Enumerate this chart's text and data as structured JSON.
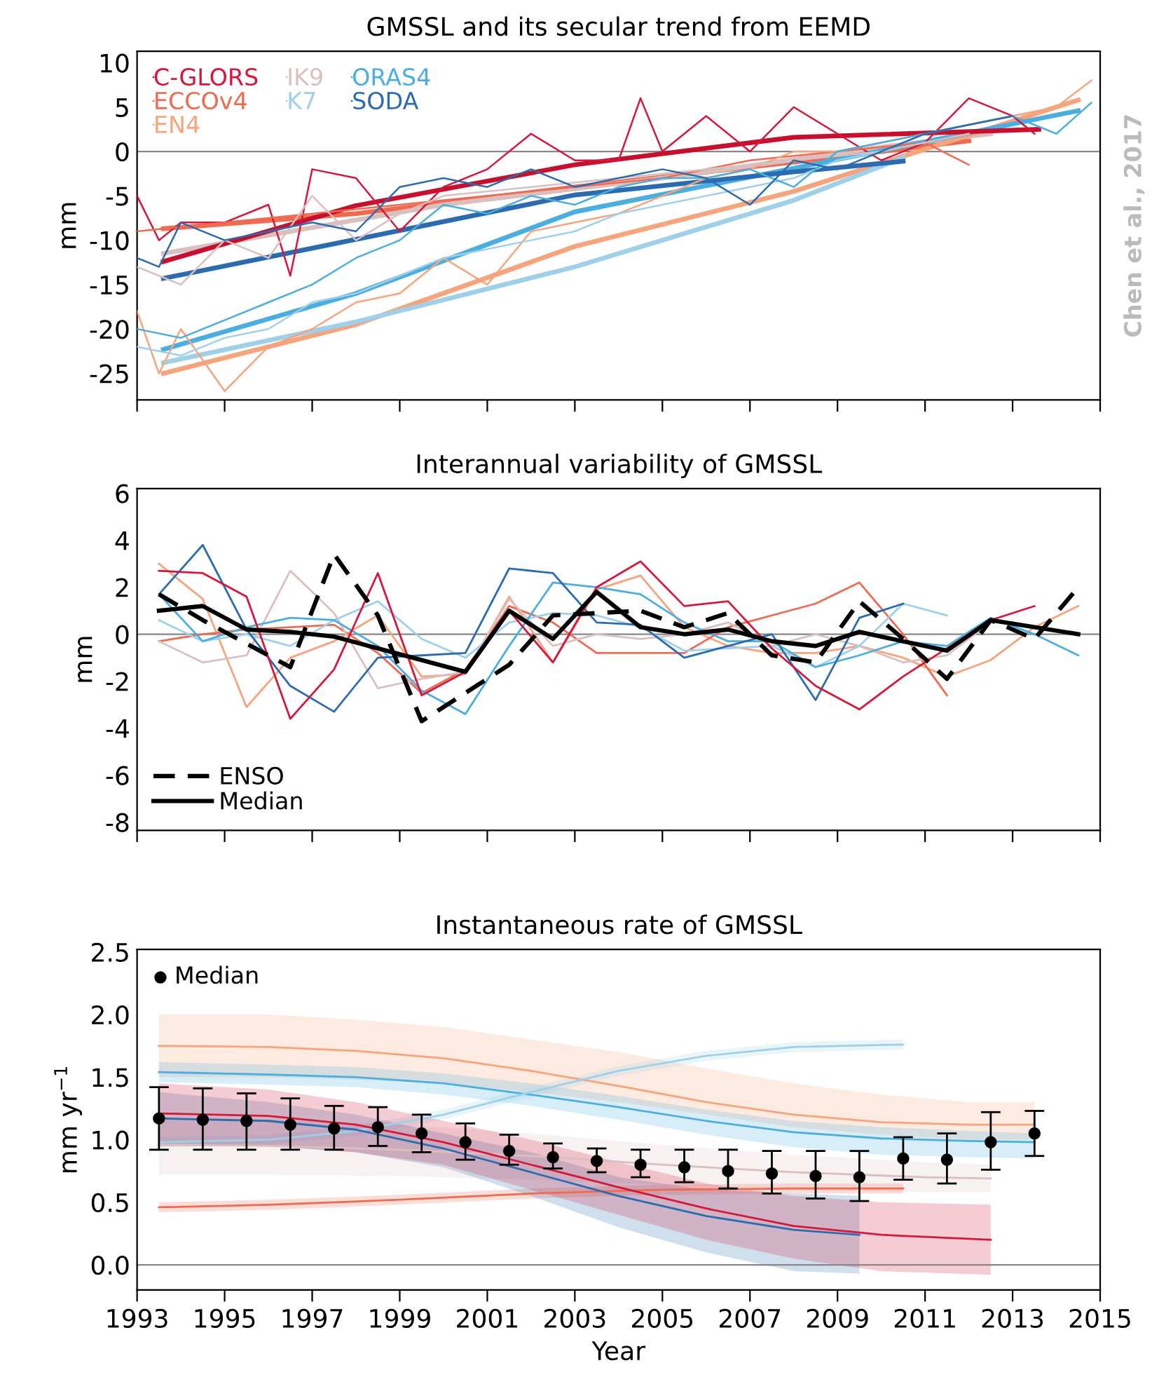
{
  "chart_data": [
    {
      "type": "line",
      "title": "GMSSL and its secular trend from EEMD",
      "ylabel": "mm",
      "xlim": [
        1993,
        2015
      ],
      "xticks": [
        1993,
        1995,
        1997,
        1999,
        2001,
        2003,
        2005,
        2007,
        2009,
        2011,
        2013,
        2015
      ],
      "ylim": [
        -28,
        11.3
      ],
      "yticks": [
        -25,
        -20,
        -15,
        -10,
        -5,
        0,
        5,
        10
      ],
      "tick_labels": "y",
      "legend": "top left",
      "grid": false,
      "marker": "none",
      "annotations": [
        "Chen et al., 2017"
      ],
      "ref_lines": [
        {
          "axis": "y",
          "value": 0,
          "color": "#888888"
        }
      ],
      "series": [
        {
          "name": "C-GLORS",
          "color": "#d6163a",
          "x": [
            1993,
            1993.5,
            1994,
            1995,
            1996,
            1996.5,
            1997,
            1998,
            1999,
            2000,
            2001,
            2002,
            2003,
            2004,
            2004.5,
            2005,
            2006,
            2007,
            2008,
            2009,
            2010,
            2011,
            2012,
            2013,
            2013.5
          ],
          "values": [
            -5,
            -10,
            -8,
            -8,
            -6,
            -14,
            -2,
            -3,
            -9,
            -4,
            -2,
            2,
            -1,
            -1,
            6,
            0,
            4,
            0,
            5,
            2,
            -1,
            1,
            6,
            4,
            2
          ]
        },
        {
          "name": "ECCOv4",
          "color": "#f06a50",
          "x": [
            1993,
            1995,
            1997,
            1999,
            2001,
            2003,
            2005,
            2007,
            2009,
            2011,
            2012
          ],
          "values": [
            -9,
            -8,
            -7,
            -6,
            -5,
            -4,
            -3,
            -1,
            0,
            1,
            -1.5
          ]
        },
        {
          "name": "EN4",
          "color": "#f7a37c",
          "x": [
            1993,
            1993.5,
            1994,
            1995,
            1996,
            1997,
            1998,
            1999,
            2000,
            2001,
            2002,
            2003,
            2004,
            2005,
            2006,
            2007,
            2008,
            2009,
            2010,
            2011,
            2012,
            2013,
            2014,
            2014.8
          ],
          "values": [
            -18,
            -25,
            -20,
            -27,
            -22,
            -20,
            -17,
            -16,
            -12,
            -15,
            -9,
            -8,
            -7,
            -5,
            -3,
            -2,
            0,
            0,
            1,
            2,
            3,
            4,
            5,
            8
          ]
        },
        {
          "name": "IK9",
          "color": "#d9bfbf",
          "x": [
            1993,
            1994,
            1995,
            1996,
            1997,
            1998,
            1999,
            2000,
            2002,
            2004,
            2006,
            2008,
            2010,
            2012
          ],
          "values": [
            -13,
            -15,
            -10,
            -12,
            -5,
            -10,
            -7,
            -5,
            -4,
            -3,
            -2,
            -1,
            0,
            2
          ]
        },
        {
          "name": "K7",
          "color": "#9fd0ea",
          "x": [
            1993,
            1994,
            1995,
            1996,
            1997,
            1998,
            1999,
            2000,
            2001,
            2002,
            2003,
            2004,
            2005,
            2006,
            2007,
            2008,
            2009,
            2010
          ],
          "values": [
            -22,
            -23,
            -21,
            -20,
            -17,
            -16,
            -14,
            -12,
            -11,
            -10,
            -9,
            -7,
            -6,
            -5,
            -4,
            -3,
            -1,
            0
          ]
        },
        {
          "name": "ORAS4",
          "color": "#4aaee0",
          "x": [
            1993,
            1994,
            1995,
            1996,
            1997,
            1998,
            1999,
            2000,
            2001,
            2002,
            2003,
            2004,
            2005,
            2006,
            2007,
            2008,
            2009,
            2010,
            2011,
            2012,
            2013,
            2014,
            2014.8
          ],
          "values": [
            -20,
            -21,
            -19,
            -17,
            -15,
            -12,
            -10,
            -6,
            -7,
            -5,
            -6,
            -4,
            -3,
            -3,
            -2,
            -4,
            0,
            1,
            2,
            3,
            4,
            2,
            5.5
          ]
        },
        {
          "name": "SODA",
          "color": "#2b6cb0",
          "x": [
            1993,
            1993.5,
            1994,
            1995,
            1996,
            1997,
            1998,
            1999,
            2000,
            2001,
            2002,
            2003,
            2004,
            2005,
            2006,
            2007,
            2008,
            2009,
            2010,
            2011,
            2012,
            2013
          ],
          "values": [
            -12,
            -13,
            -8,
            -10,
            -9,
            -8,
            -9,
            -4,
            -3,
            -4,
            -2,
            -4,
            -3,
            -2,
            -3,
            -6,
            -1,
            -2,
            0,
            2,
            3,
            4
          ]
        },
        {
          "color": "#f06a50",
          "x": [
            1993.6,
            1998,
            2003,
            2008,
            2012
          ],
          "values": [
            -8.7,
            -7,
            -4,
            -1.2,
            1.2
          ]
        },
        {
          "color": "#d9bfbf",
          "x": [
            1993.6,
            2000,
            2005,
            2010,
            2012.5
          ],
          "values": [
            -11.5,
            -6,
            -3,
            0.5,
            2
          ]
        },
        {
          "color": "#f7a37c",
          "x": [
            1993.6,
            1998,
            2003,
            2008,
            2014.5
          ],
          "values": [
            -25,
            -19.5,
            -10.7,
            -4.5,
            5.8
          ]
        },
        {
          "color": "#9fd0ea",
          "x": [
            1993.6,
            1998,
            2003,
            2008,
            2010.5
          ],
          "values": [
            -23.8,
            -19.2,
            -13,
            -5.5,
            -0.7
          ]
        },
        {
          "color": "#4aaee0",
          "x": [
            1993.6,
            1998,
            2003,
            2008,
            2014.5
          ],
          "values": [
            -22.3,
            -16,
            -6.8,
            -1.9,
            4.6
          ]
        },
        {
          "color": "#2b6cb0",
          "x": [
            1993.6,
            1998,
            2003,
            2008,
            2010.5
          ],
          "values": [
            -14.3,
            -9.9,
            -4.9,
            -2.3,
            -1.1
          ]
        },
        {
          "color": "#c8102e",
          "x": [
            1993.6,
            1998,
            2003,
            2008,
            2013.6
          ],
          "values": [
            -12.4,
            -6.1,
            -1.5,
            1.6,
            2.5
          ]
        }
      ]
    },
    {
      "type": "line",
      "title": "Interannual variability of GMSSL",
      "ylabel": "mm",
      "xlim": [
        1993,
        2015
      ],
      "xticks": [
        1993,
        1995,
        1997,
        1999,
        2001,
        2003,
        2005,
        2007,
        2009,
        2011,
        2013,
        2015
      ],
      "ylim": [
        -8.35,
        6.2
      ],
      "yticks": [
        -8,
        -6,
        -4,
        -2,
        0,
        2,
        4,
        6
      ],
      "tick_labels": "y",
      "legend": "bottom left",
      "grid": false,
      "marker": "none",
      "ref_lines": [
        {
          "axis": "y",
          "value": 0,
          "color": "#888888"
        }
      ],
      "x": [
        1993.5,
        1994.5,
        1995.5,
        1996.5,
        1997.5,
        1998.5,
        1999.5,
        2000.5,
        2001.5,
        2002.5,
        2003.5,
        2004.5,
        2005.5,
        2006.5,
        2007.5,
        2008.5,
        2009.5,
        2010.5,
        2011.5,
        2012.5,
        2013.5,
        2014.5
      ],
      "series": [
        {
          "color": "#f7a37c",
          "values": [
            3.0,
            1.5,
            -3.1,
            -1.0,
            -0.3,
            0.8,
            -1.8,
            -1.7,
            1.6,
            -1.2,
            1.9,
            2.5,
            0.3,
            -0.5,
            -0.8,
            -0.8,
            -0.5,
            -1.0,
            -1.8,
            -1.1,
            0.3,
            1.2
          ]
        },
        {
          "color": "#f06a50",
          "values": [
            -0.3,
            0.0,
            0.2,
            0.3,
            0.4,
            -0.8,
            -2.5,
            -1.5,
            1.2,
            0.5,
            -0.8,
            -0.8,
            -0.8,
            0.3,
            0.8,
            1.3,
            2.2,
            0.0,
            -2.6,
            null,
            null,
            null
          ]
        },
        {
          "color": "#d9bfbf",
          "values": [
            -0.3,
            -1.2,
            -0.9,
            2.7,
            0.9,
            -2.3,
            -1.9,
            -1.6,
            1.5,
            -0.5,
            0.0,
            -0.2,
            0.0,
            0.5,
            -0.5,
            0.0,
            -0.5,
            -1.2,
            -0.9,
            0.5,
            null,
            null
          ]
        },
        {
          "color": "#9fd0ea",
          "values": [
            0.6,
            -0.3,
            0.0,
            -0.5,
            0.6,
            1.4,
            -0.2,
            -1.0,
            0.5,
            0.9,
            0.8,
            0.3,
            -0.7,
            -0.6,
            -0.5,
            -1.4,
            -0.5,
            1.3,
            0.8,
            null,
            null,
            null
          ]
        },
        {
          "color": "#4aaee0",
          "values": [
            1.7,
            -0.3,
            0.3,
            0.7,
            0.6,
            -0.5,
            -2.4,
            -3.4,
            -0.5,
            2.2,
            2.0,
            1.7,
            0.5,
            -0.3,
            -0.3,
            -1.4,
            -0.9,
            -0.3,
            -0.5,
            0.7,
            0.0,
            -0.9
          ]
        },
        {
          "color": "#2b6cb0",
          "values": [
            1.7,
            3.8,
            0.2,
            -2.2,
            -3.3,
            -1.0,
            -0.9,
            -0.8,
            2.8,
            2.6,
            0.5,
            0.4,
            -1.0,
            -0.5,
            0.0,
            -2.8,
            0.7,
            1.3,
            null,
            null,
            null,
            null
          ]
        },
        {
          "color": "#d6163a",
          "values": [
            2.7,
            2.6,
            1.6,
            -3.6,
            -1.5,
            2.6,
            -2.6,
            -1.6,
            1.0,
            -1.2,
            2.0,
            3.1,
            1.2,
            1.4,
            -0.6,
            -2.2,
            -3.2,
            -1.8,
            -0.6,
            0.6,
            1.2,
            null
          ]
        },
        {
          "name": "ENSO",
          "color": "#000000",
          "line_style": "dashed",
          "values": [
            1.7,
            0.6,
            -0.4,
            -1.4,
            3.4,
            0.8,
            -3.7,
            -2.5,
            -1.3,
            0.8,
            0.9,
            1.0,
            0.3,
            0.9,
            -0.9,
            -1.2,
            1.4,
            -0.2,
            -1.9,
            0.6,
            -0.2,
            2.0
          ]
        },
        {
          "name": "Median",
          "color": "#000000",
          "line_style": "solid",
          "values": [
            1.0,
            1.2,
            0.2,
            0.1,
            -0.1,
            -0.6,
            -1.1,
            -1.6,
            1.0,
            -0.2,
            1.8,
            0.3,
            0.0,
            0.2,
            -0.3,
            -0.5,
            0.1,
            -0.3,
            -0.7,
            0.6,
            0.3,
            0.0
          ]
        }
      ]
    },
    {
      "type": "line",
      "title": "Instantaneous rate of GMSSL",
      "xlabel": "Year",
      "ylabel": "mm yr$^{−1}$",
      "xlim": [
        1993,
        2015
      ],
      "xticks": [
        1993,
        1995,
        1997,
        1999,
        2001,
        2003,
        2005,
        2007,
        2009,
        2011,
        2013,
        2015
      ],
      "ylim": [
        -0.2,
        2.52
      ],
      "yticks": [
        {
          "value": 0,
          "label": "0.0"
        },
        {
          "value": 0.5,
          "label": "0.5"
        },
        {
          "value": 1,
          "label": "1.0"
        },
        {
          "value": 1.5,
          "label": "1.5"
        },
        {
          "value": 2,
          "label": "2.0"
        },
        {
          "value": 2.5,
          "label": "2.5"
        }
      ],
      "legend": "top left",
      "grid": false,
      "marker": "none",
      "ref_lines": [
        {
          "axis": "y",
          "value": 0,
          "color": "#888888"
        }
      ],
      "series": [
        {
          "color": "#f7a37c",
          "x": [
            1993.5,
            1996,
            1998,
            2000,
            2002,
            2004,
            2006,
            2008,
            2010,
            2012,
            2013.5
          ],
          "values": [
            1.75,
            1.74,
            1.71,
            1.65,
            1.55,
            1.43,
            1.3,
            1.2,
            1.14,
            1.12,
            1.12
          ],
          "lower": [
            1.5,
            1.5,
            1.48,
            1.45,
            1.38,
            1.3,
            1.2,
            1.1,
            1.04,
            1.0,
            1.0
          ],
          "upper": [
            2.0,
            2.0,
            1.96,
            1.9,
            1.8,
            1.7,
            1.57,
            1.45,
            1.36,
            1.3,
            1.3
          ]
        },
        {
          "color": "#4aaee0",
          "x": [
            1993.5,
            1996,
            1998,
            2000,
            2002,
            2004,
            2006,
            2008,
            2010,
            2012,
            2013.5
          ],
          "values": [
            1.54,
            1.52,
            1.5,
            1.45,
            1.36,
            1.26,
            1.15,
            1.06,
            1.01,
            0.99,
            0.98
          ],
          "lower": [
            1.46,
            1.44,
            1.42,
            1.36,
            1.27,
            1.16,
            1.04,
            0.94,
            0.88,
            0.86,
            0.85
          ],
          "upper": [
            1.62,
            1.6,
            1.58,
            1.53,
            1.45,
            1.35,
            1.24,
            1.15,
            1.1,
            1.07,
            1.05
          ]
        },
        {
          "color": "#9fd0ea",
          "x": [
            1993.5,
            1996,
            1998,
            2000,
            2002,
            2004,
            2006,
            2008,
            2010.5
          ],
          "values": [
            0.98,
            1.0,
            1.07,
            1.2,
            1.38,
            1.55,
            1.67,
            1.74,
            1.76
          ],
          "lower": [
            0.94,
            0.96,
            1.03,
            1.16,
            1.34,
            1.51,
            1.63,
            1.7,
            1.72
          ],
          "upper": [
            1.02,
            1.04,
            1.11,
            1.24,
            1.42,
            1.59,
            1.71,
            1.78,
            1.8
          ]
        },
        {
          "color": "#d9bfbf",
          "x": [
            1993.5,
            1996,
            1999,
            2002,
            2005,
            2008,
            2011,
            2012.5
          ],
          "values": [
            0.96,
            0.95,
            0.92,
            0.87,
            0.8,
            0.74,
            0.7,
            0.69
          ],
          "lower": [
            0.72,
            0.72,
            0.71,
            0.68,
            0.64,
            0.6,
            0.58,
            0.58
          ],
          "upper": [
            1.18,
            1.16,
            1.12,
            1.05,
            0.96,
            0.88,
            0.82,
            0.8
          ]
        },
        {
          "color": "#f06a50",
          "x": [
            1993.5,
            1996,
            1999,
            2002,
            2005,
            2008,
            2010.5
          ],
          "values": [
            0.46,
            0.48,
            0.52,
            0.57,
            0.6,
            0.61,
            0.61
          ],
          "lower": [
            0.42,
            0.44,
            0.48,
            0.53,
            0.56,
            0.57,
            0.57
          ],
          "upper": [
            0.5,
            0.52,
            0.56,
            0.61,
            0.64,
            0.65,
            0.65
          ]
        },
        {
          "color": "#2b6cb0",
          "x": [
            1993.5,
            1996,
            1998,
            2000,
            2002,
            2004,
            2006,
            2008,
            2009.5
          ],
          "values": [
            1.17,
            1.15,
            1.08,
            0.93,
            0.74,
            0.55,
            0.39,
            0.28,
            0.24
          ],
          "lower": [
            0.95,
            0.95,
            0.9,
            0.78,
            0.55,
            0.3,
            0.1,
            -0.05,
            -0.07
          ],
          "upper": [
            1.38,
            1.3,
            1.2,
            1.05,
            0.9,
            0.7,
            0.6,
            0.57,
            0.55
          ]
        },
        {
          "color": "#d6163a",
          "x": [
            1993.5,
            1996,
            1998,
            2000,
            2002,
            2004,
            2006,
            2008,
            2010,
            2012.5
          ],
          "values": [
            1.21,
            1.19,
            1.12,
            0.98,
            0.8,
            0.62,
            0.45,
            0.31,
            0.24,
            0.2
          ],
          "lower": [
            0.95,
            0.95,
            0.9,
            0.8,
            0.6,
            0.4,
            0.2,
            0.05,
            -0.05,
            -0.08
          ],
          "upper": [
            1.45,
            1.4,
            1.3,
            1.15,
            1.0,
            0.82,
            0.65,
            0.55,
            0.5,
            0.48
          ]
        },
        {
          "name": "Median",
          "type": "scatter",
          "marker": "circle",
          "color": "#000000",
          "x": [
            1993.5,
            1994.5,
            1995.5,
            1996.5,
            1997.5,
            1998.5,
            1999.5,
            2000.5,
            2001.5,
            2002.5,
            2003.5,
            2004.5,
            2005.5,
            2006.5,
            2007.5,
            2008.5,
            2009.5,
            2010.5,
            2011.5,
            2012.5,
            2013.5
          ],
          "values": [
            1.17,
            1.16,
            1.15,
            1.12,
            1.09,
            1.1,
            1.05,
            0.98,
            0.91,
            0.86,
            0.83,
            0.8,
            0.78,
            0.75,
            0.73,
            0.71,
            0.7,
            0.85,
            0.84,
            0.98,
            1.05
          ],
          "errors": [
            [
              0.92,
              1.42
            ],
            [
              0.92,
              1.41
            ],
            [
              0.92,
              1.37
            ],
            [
              0.92,
              1.33
            ],
            [
              0.92,
              1.27
            ],
            [
              0.95,
              1.26
            ],
            [
              0.9,
              1.2
            ],
            [
              0.84,
              1.13
            ],
            [
              0.8,
              1.04
            ],
            [
              0.77,
              0.97
            ],
            [
              0.74,
              0.93
            ],
            [
              0.7,
              0.92
            ],
            [
              0.66,
              0.92
            ],
            [
              0.61,
              0.92
            ],
            [
              0.57,
              0.91
            ],
            [
              0.53,
              0.91
            ],
            [
              0.51,
              0.91
            ],
            [
              0.68,
              1.02
            ],
            [
              0.65,
              1.05
            ],
            [
              0.76,
              1.22
            ],
            [
              0.87,
              1.23
            ]
          ]
        }
      ]
    }
  ]
}
